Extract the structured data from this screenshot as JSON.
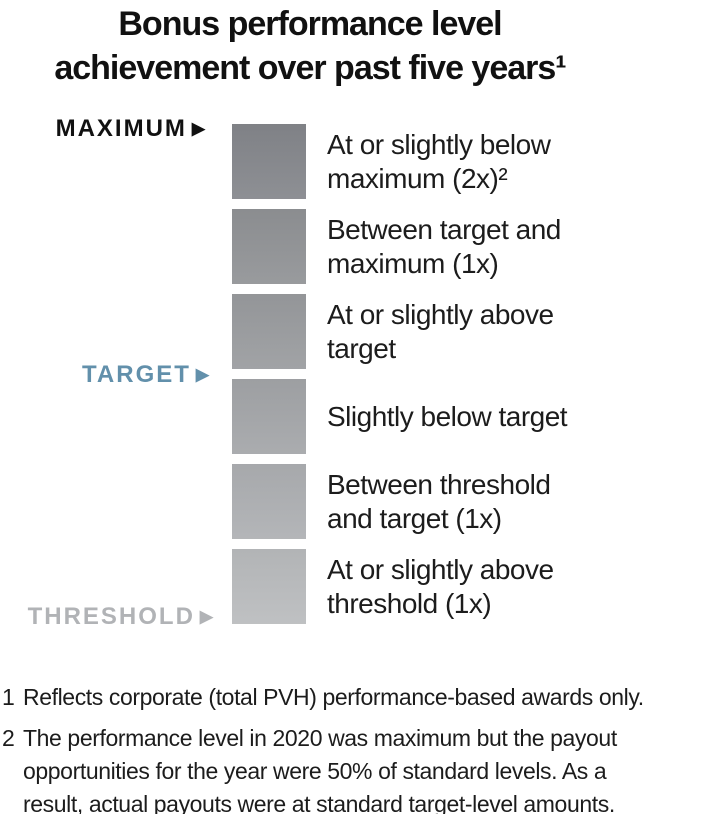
{
  "title": {
    "line1": "Bonus performance level",
    "line2": "achievement over past five years¹"
  },
  "scale": {
    "maximum_label": "MAXIMUM",
    "target_label": "TARGET",
    "threshold_label": "THRESHOLD",
    "arrow": "▶"
  },
  "colors": {
    "maximum_label": "#111111",
    "target_label": "#6290ab",
    "threshold_label": "#b1b3b6",
    "swatch_darkest": "#85878c",
    "swatch_lightest": "#babcbe"
  },
  "chart_data": {
    "type": "bar",
    "title": "Bonus performance level achievement over past five years¹",
    "subtitle": "",
    "orientation": "vertical qualitative scale, best (maximum) at top to worst (threshold) at bottom",
    "axis_markers": [
      "MAXIMUM",
      "TARGET",
      "THRESHOLD"
    ],
    "legend_position": "right of swatches",
    "grid": "off",
    "levels": [
      {
        "label": "At or slightly below maximum (2x)²",
        "swatch_color": "#85878c"
      },
      {
        "label": "Between target and maximum (1x)",
        "swatch_color": "#919396"
      },
      {
        "label": "At or slightly above target",
        "swatch_color": "#9a9c9f"
      },
      {
        "label": "Slightly below target",
        "swatch_color": "#a4a6a9"
      },
      {
        "label": "Between threshold and target (1x)",
        "swatch_color": "#aeb0b3"
      },
      {
        "label": "At or slightly above threshold (1x)",
        "swatch_color": "#babcbe"
      }
    ],
    "footnotes": [
      "1 Reflects corporate (total PVH) performance-based awards only.",
      "2 The performance level in 2020 was maximum but the payout opportunities for the year were 50% of standard levels. As a result, actual payouts were at standard target-level amounts."
    ]
  },
  "rows": [
    {
      "color": "#85878c",
      "line1": "At or slightly below",
      "line2": "maximum (2x)²"
    },
    {
      "color": "#919396",
      "line1": "Between target and",
      "line2": "maximum (1x)"
    },
    {
      "color": "#9a9c9f",
      "line1": "At or slightly above",
      "line2": "target"
    },
    {
      "color": "#a4a6a9",
      "line1": "Slightly below target"
    },
    {
      "color": "#aeb0b3",
      "line1": "Between threshold",
      "line2": "and target (1x)"
    },
    {
      "color": "#babcbe",
      "line1": "At or slightly above",
      "line2": "threshold (1x)"
    }
  ],
  "footnotes": [
    {
      "number": "1",
      "line1": "Reflects corporate (total PVH) performance-based awards only."
    },
    {
      "number": "2",
      "line1": "The performance level in 2020 was maximum but the payout",
      "line2": "opportunities for the year were 50% of standard levels. As a",
      "line3": "result, actual payouts were at standard target-level amounts."
    }
  ]
}
